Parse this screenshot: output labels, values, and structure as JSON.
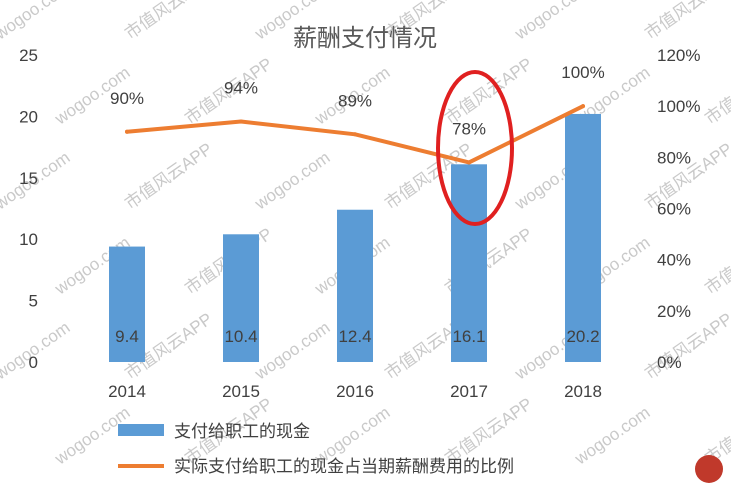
{
  "chart_data": {
    "type": "bar",
    "title": "薪酬支付情况",
    "categories": [
      "2014",
      "2015",
      "2016",
      "2017",
      "2018"
    ],
    "series": [
      {
        "name": "支付给职工的现金",
        "type": "bar",
        "axis": "left",
        "color": "#5b9bd5",
        "values": [
          9.4,
          10.4,
          12.4,
          16.1,
          20.2
        ],
        "labels": [
          "9.4",
          "10.4",
          "12.4",
          "16.1",
          "20.2"
        ]
      },
      {
        "name": "实际支付给职工的现金占当期薪酬费用的比例",
        "type": "line",
        "axis": "right",
        "color": "#ed7d31",
        "values": [
          90,
          94,
          89,
          78,
          100
        ],
        "labels": [
          "90%",
          "94%",
          "89%",
          "78%",
          "100%"
        ]
      }
    ],
    "y_left": {
      "min": 0,
      "max": 25,
      "ticks": [
        "0",
        "5",
        "10",
        "15",
        "20",
        "25"
      ]
    },
    "y_right": {
      "min": 0,
      "max": 120,
      "ticks": [
        "0%",
        "20%",
        "40%",
        "60%",
        "80%",
        "100%",
        "120%"
      ]
    },
    "grid": false,
    "legend_position": "bottom-left",
    "annotation": {
      "type": "ellipse",
      "category": "2017",
      "color": "#e02020"
    },
    "watermark": {
      "texts": [
        "wogoo.com",
        "市值风云APP"
      ],
      "color": "#c9c9c9"
    }
  }
}
